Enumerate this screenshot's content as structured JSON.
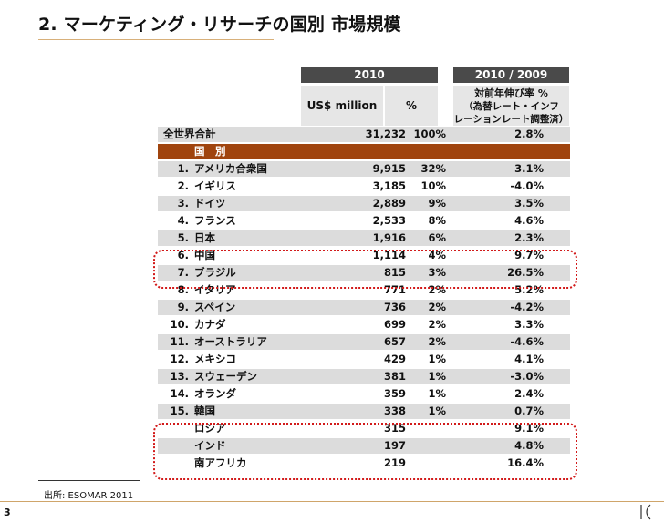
{
  "title": "2. マーケティング・リサーチの国別 市場規模",
  "header": {
    "year": "2010",
    "change_period": "2010 / 2009",
    "col_value": "US$ million",
    "col_pct": "%",
    "col_change_line1": "対前年伸び率 %",
    "col_change_line2": "（為替レート・インフ",
    "col_change_line3": "レーションレート調整済）"
  },
  "total": {
    "label": "全世界合計",
    "value": "31,232",
    "pct": "100%",
    "change": "2.8%"
  },
  "section_label": "国　別",
  "rows": [
    {
      "num": "1.",
      "name": "アメリカ合衆国",
      "value": "9,915",
      "pct": "32%",
      "change": "3.1%"
    },
    {
      "num": "2.",
      "name": "イギリス",
      "value": "3,185",
      "pct": "10%",
      "change": "-4.0%"
    },
    {
      "num": "3.",
      "name": "ドイツ",
      "value": "2,889",
      "pct": "9%",
      "change": "3.5%"
    },
    {
      "num": "4.",
      "name": "フランス",
      "value": "2,533",
      "pct": "8%",
      "change": "4.6%"
    },
    {
      "num": "5.",
      "name": "日本",
      "value": "1,916",
      "pct": "6%",
      "change": "2.3%"
    },
    {
      "num": "6.",
      "name": "中国",
      "value": "1,114",
      "pct": "4%",
      "change": "9.7%"
    },
    {
      "num": "7.",
      "name": "ブラジル",
      "value": "815",
      "pct": "3%",
      "change": "26.5%"
    },
    {
      "num": "8.",
      "name": "イタリア",
      "value": "771",
      "pct": "2%",
      "change": "5.2%"
    },
    {
      "num": "9.",
      "name": "スペイン",
      "value": "736",
      "pct": "2%",
      "change": "-4.2%"
    },
    {
      "num": "10.",
      "name": "カナダ",
      "value": "699",
      "pct": "2%",
      "change": "3.3%"
    },
    {
      "num": "11.",
      "name": "オーストラリア",
      "value": "657",
      "pct": "2%",
      "change": "-4.6%"
    },
    {
      "num": "12.",
      "name": "メキシコ",
      "value": "429",
      "pct": "1%",
      "change": "4.1%"
    },
    {
      "num": "13.",
      "name": "スウェーデン",
      "value": "381",
      "pct": "1%",
      "change": "-3.0%"
    },
    {
      "num": "14.",
      "name": "オランダ",
      "value": "359",
      "pct": "1%",
      "change": "2.4%"
    },
    {
      "num": "15.",
      "name": "韓国",
      "value": "338",
      "pct": "1%",
      "change": "0.7%"
    },
    {
      "num": "",
      "name": "ロシア",
      "value": "315",
      "pct": "",
      "change": "9.1%"
    },
    {
      "num": "",
      "name": "インド",
      "value": "197",
      "pct": "",
      "change": "4.8%"
    },
    {
      "num": "",
      "name": "南アフリカ",
      "value": "219",
      "pct": "",
      "change": "16.4%"
    }
  ],
  "footnote": "出所: ESOMAR 2011",
  "page_number": "3",
  "colors": {
    "section_bg": "#a0440e",
    "highlight": "#d21a1a",
    "header_dark": "#4a4a4a"
  }
}
